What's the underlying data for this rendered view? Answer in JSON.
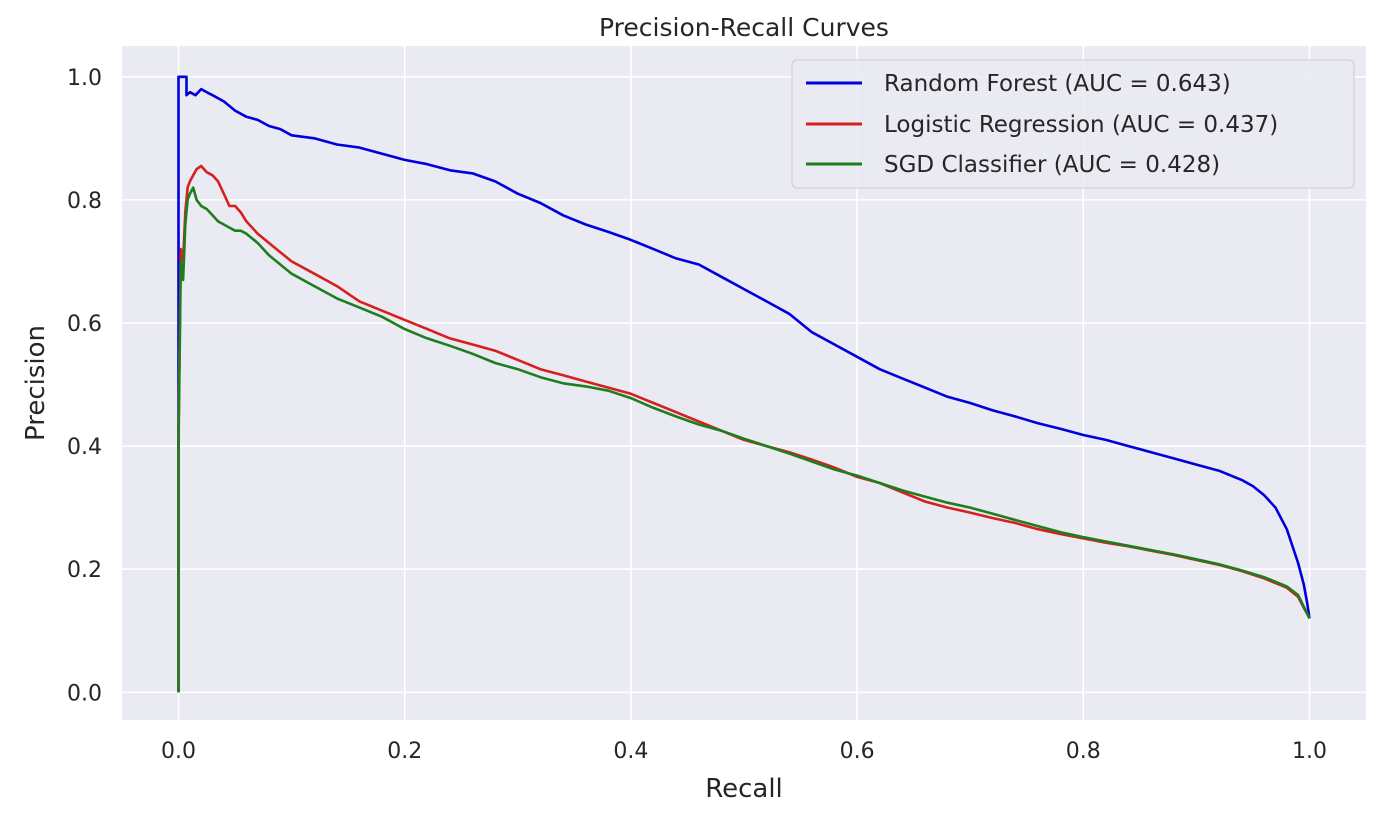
{
  "chart_data": {
    "type": "line",
    "title": "Precision-Recall Curves",
    "xlabel": "Recall",
    "ylabel": "Precision",
    "xlim": [
      -0.05,
      1.05
    ],
    "ylim": [
      -0.045,
      1.05
    ],
    "xticks": [
      0.0,
      0.2,
      0.4,
      0.6,
      0.8,
      1.0
    ],
    "yticks": [
      0.0,
      0.2,
      0.4,
      0.6,
      0.8,
      1.0
    ],
    "xtick_labels": [
      "0.0",
      "0.2",
      "0.4",
      "0.6",
      "0.8",
      "1.0"
    ],
    "ytick_labels": [
      "0.0",
      "0.2",
      "0.4",
      "0.6",
      "0.8",
      "1.0"
    ],
    "grid": true,
    "legend_position": "top-right",
    "colors": {
      "background": "#eaeaf2",
      "grid": "#ffffff"
    },
    "series": [
      {
        "name": "Random Forest (AUC = 0.643)",
        "color": "#0000dd",
        "x": [
          0.0,
          0.0,
          0.0,
          0.003,
          0.007,
          0.007,
          0.01,
          0.015,
          0.02,
          0.025,
          0.03,
          0.035,
          0.04,
          0.05,
          0.06,
          0.07,
          0.08,
          0.09,
          0.1,
          0.12,
          0.14,
          0.16,
          0.18,
          0.2,
          0.22,
          0.24,
          0.26,
          0.28,
          0.3,
          0.32,
          0.34,
          0.36,
          0.38,
          0.4,
          0.42,
          0.44,
          0.46,
          0.48,
          0.5,
          0.52,
          0.54,
          0.56,
          0.58,
          0.6,
          0.62,
          0.64,
          0.66,
          0.68,
          0.7,
          0.72,
          0.74,
          0.76,
          0.78,
          0.8,
          0.82,
          0.84,
          0.86,
          0.88,
          0.9,
          0.92,
          0.94,
          0.95,
          0.96,
          0.97,
          0.98,
          0.99,
          0.995,
          0.998,
          1.0
        ],
        "y": [
          0.0,
          1.0,
          1.0,
          1.0,
          1.0,
          0.97,
          0.975,
          0.97,
          0.98,
          0.975,
          0.97,
          0.965,
          0.96,
          0.945,
          0.935,
          0.93,
          0.92,
          0.915,
          0.905,
          0.9,
          0.89,
          0.885,
          0.875,
          0.865,
          0.858,
          0.848,
          0.843,
          0.83,
          0.81,
          0.795,
          0.775,
          0.76,
          0.748,
          0.735,
          0.72,
          0.705,
          0.695,
          0.675,
          0.655,
          0.635,
          0.615,
          0.585,
          0.565,
          0.545,
          0.525,
          0.51,
          0.495,
          0.48,
          0.47,
          0.458,
          0.448,
          0.437,
          0.428,
          0.418,
          0.41,
          0.4,
          0.39,
          0.38,
          0.37,
          0.36,
          0.345,
          0.335,
          0.32,
          0.3,
          0.265,
          0.21,
          0.175,
          0.145,
          0.12
        ]
      },
      {
        "name": "Logistic Regression (AUC = 0.437)",
        "color": "#d62020",
        "x": [
          0.0,
          0.0,
          0.002,
          0.004,
          0.006,
          0.008,
          0.01,
          0.013,
          0.016,
          0.02,
          0.025,
          0.03,
          0.035,
          0.04,
          0.045,
          0.05,
          0.055,
          0.06,
          0.07,
          0.08,
          0.09,
          0.1,
          0.12,
          0.14,
          0.16,
          0.18,
          0.2,
          0.22,
          0.24,
          0.26,
          0.28,
          0.3,
          0.32,
          0.34,
          0.36,
          0.38,
          0.4,
          0.42,
          0.44,
          0.46,
          0.48,
          0.5,
          0.52,
          0.54,
          0.56,
          0.58,
          0.6,
          0.62,
          0.64,
          0.66,
          0.68,
          0.7,
          0.72,
          0.74,
          0.76,
          0.78,
          0.8,
          0.82,
          0.84,
          0.86,
          0.88,
          0.9,
          0.92,
          0.94,
          0.96,
          0.98,
          0.99,
          1.0
        ],
        "y": [
          0.0,
          0.42,
          0.72,
          0.7,
          0.78,
          0.82,
          0.83,
          0.84,
          0.85,
          0.855,
          0.845,
          0.84,
          0.83,
          0.81,
          0.79,
          0.79,
          0.78,
          0.765,
          0.745,
          0.73,
          0.715,
          0.7,
          0.68,
          0.66,
          0.635,
          0.62,
          0.605,
          0.59,
          0.575,
          0.565,
          0.555,
          0.54,
          0.525,
          0.515,
          0.505,
          0.495,
          0.485,
          0.47,
          0.455,
          0.44,
          0.425,
          0.41,
          0.4,
          0.39,
          0.378,
          0.365,
          0.35,
          0.34,
          0.325,
          0.31,
          0.3,
          0.292,
          0.283,
          0.275,
          0.265,
          0.257,
          0.25,
          0.243,
          0.237,
          0.23,
          0.223,
          0.215,
          0.207,
          0.197,
          0.185,
          0.17,
          0.155,
          0.12
        ]
      },
      {
        "name": "SGD Classifier (AUC = 0.428)",
        "color": "#1e7e1e",
        "x": [
          0.0,
          0.0,
          0.002,
          0.004,
          0.006,
          0.008,
          0.01,
          0.013,
          0.016,
          0.02,
          0.025,
          0.03,
          0.035,
          0.04,
          0.045,
          0.05,
          0.055,
          0.06,
          0.07,
          0.08,
          0.09,
          0.1,
          0.12,
          0.14,
          0.16,
          0.18,
          0.2,
          0.22,
          0.24,
          0.26,
          0.28,
          0.3,
          0.32,
          0.34,
          0.36,
          0.38,
          0.4,
          0.42,
          0.44,
          0.46,
          0.48,
          0.5,
          0.52,
          0.54,
          0.56,
          0.58,
          0.6,
          0.62,
          0.64,
          0.66,
          0.68,
          0.7,
          0.72,
          0.74,
          0.76,
          0.78,
          0.8,
          0.82,
          0.84,
          0.86,
          0.88,
          0.9,
          0.92,
          0.94,
          0.96,
          0.98,
          0.99,
          1.0
        ],
        "y": [
          0.0,
          0.4,
          0.7,
          0.67,
          0.76,
          0.8,
          0.81,
          0.82,
          0.8,
          0.79,
          0.785,
          0.775,
          0.765,
          0.76,
          0.755,
          0.75,
          0.75,
          0.745,
          0.73,
          0.71,
          0.695,
          0.68,
          0.66,
          0.64,
          0.625,
          0.61,
          0.59,
          0.575,
          0.563,
          0.55,
          0.535,
          0.525,
          0.512,
          0.502,
          0.497,
          0.49,
          0.478,
          0.462,
          0.448,
          0.435,
          0.425,
          0.412,
          0.4,
          0.388,
          0.375,
          0.362,
          0.352,
          0.34,
          0.328,
          0.318,
          0.308,
          0.3,
          0.29,
          0.28,
          0.27,
          0.26,
          0.252,
          0.245,
          0.238,
          0.231,
          0.224,
          0.216,
          0.208,
          0.198,
          0.187,
          0.172,
          0.158,
          0.12
        ]
      }
    ]
  }
}
